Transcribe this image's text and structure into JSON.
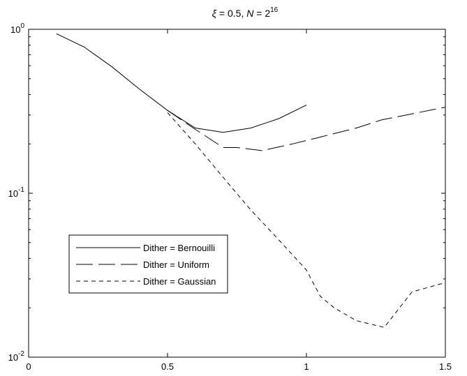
{
  "chart_data": {
    "type": "line",
    "title": {
      "xi_symbol": "ξ",
      "xi_value": " = 0.5, ",
      "n_symbol": "N",
      "n_eq": " = 2",
      "n_exp": "16"
    },
    "xlabel": "",
    "ylabel": "",
    "x_scale": "linear",
    "y_scale": "log",
    "xlim": [
      0,
      1.5
    ],
    "ylim": [
      0.01,
      1
    ],
    "x_ticks": [
      0,
      0.5,
      1,
      1.5
    ],
    "x_tick_labels": [
      "0",
      "0.5",
      "1",
      "1.5"
    ],
    "y_ticks": [
      {
        "value": 0.01,
        "base": "10",
        "exp": "-2"
      },
      {
        "value": 0.1,
        "base": "10",
        "exp": "-1"
      },
      {
        "value": 1,
        "base": "10",
        "exp": "0"
      }
    ],
    "grid": false,
    "legend_position": "left-center",
    "series": [
      {
        "name": "Dither = Bernouilli",
        "dash": "solid",
        "color": "#000000",
        "points": [
          [
            0.1,
            0.94
          ],
          [
            0.2,
            0.78
          ],
          [
            0.3,
            0.59
          ],
          [
            0.4,
            0.43
          ],
          [
            0.5,
            0.32
          ],
          [
            0.6,
            0.25
          ],
          [
            0.7,
            0.235
          ],
          [
            0.8,
            0.25
          ],
          [
            0.9,
            0.285
          ],
          [
            1.0,
            0.345
          ]
        ]
      },
      {
        "name": "Dither = Uniform",
        "dash": "long-dash",
        "color": "#000000",
        "points": [
          [
            0.5,
            0.32
          ],
          [
            0.6,
            0.245
          ],
          [
            0.7,
            0.19
          ],
          [
            0.75,
            0.19
          ],
          [
            0.84,
            0.182
          ],
          [
            0.95,
            0.2
          ],
          [
            1.05,
            0.22
          ],
          [
            1.18,
            0.25
          ],
          [
            1.27,
            0.28
          ],
          [
            1.38,
            0.305
          ],
          [
            1.5,
            0.335
          ]
        ]
      },
      {
        "name": "Dither = Gaussian",
        "dash": "short-dash",
        "color": "#000000",
        "points": [
          [
            0.5,
            0.31
          ],
          [
            0.6,
            0.2
          ],
          [
            0.7,
            0.125
          ],
          [
            0.8,
            0.079
          ],
          [
            0.9,
            0.052
          ],
          [
            1.0,
            0.034
          ],
          [
            1.05,
            0.0235
          ],
          [
            1.1,
            0.02
          ],
          [
            1.18,
            0.0167
          ],
          [
            1.28,
            0.0152
          ],
          [
            1.38,
            0.025
          ],
          [
            1.5,
            0.0285
          ]
        ]
      }
    ]
  }
}
